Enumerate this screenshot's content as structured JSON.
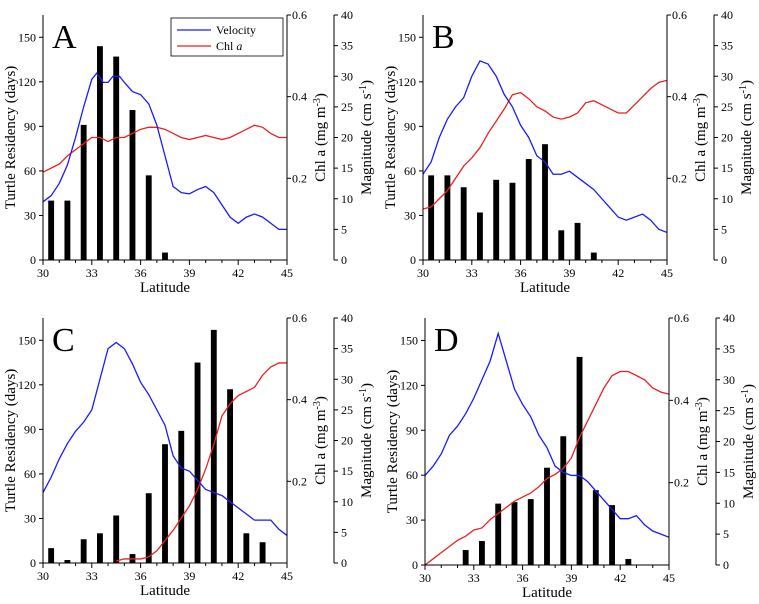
{
  "colors": {
    "velocity": "#1a1aff",
    "chl": "#e8231f",
    "bars": "#000000",
    "axes": "#000000"
  },
  "legend": {
    "velocity_label": "Velocity",
    "chl_label_prefix": "Chl ",
    "chl_label_italic": "a"
  },
  "labels": {
    "xlabel": "Latitude",
    "ylabel_left": "Turtle Residency (days)",
    "ylabel_chl_prefix": "Chl a (mg m",
    "ylabel_chl_sup": "-3",
    "ylabel_chl_suffix": ")",
    "ylabel_mag_prefix": "Magnitude (cm s",
    "ylabel_mag_sup": "-1",
    "ylabel_mag_suffix": ")"
  },
  "chart_data": [
    {
      "panel": "A",
      "type": "bar",
      "xlim": [
        30,
        45
      ],
      "xticks": [
        30,
        33,
        36,
        39,
        42,
        45
      ],
      "ylim_left": [
        0,
        165
      ],
      "yticks_left": [
        0,
        30,
        60,
        90,
        120,
        150
      ],
      "ylim_chl": [
        0,
        0.6
      ],
      "yticks_chl": [
        0.2,
        0.4,
        0.6
      ],
      "ylim_mag": [
        0,
        40
      ],
      "yticks_mag": [
        0,
        5,
        10,
        15,
        20,
        25,
        30,
        35,
        40
      ],
      "legend": "top-right",
      "bars": {
        "x": [
          30.5,
          31.5,
          32.5,
          33.5,
          34.5,
          35.5,
          36.5,
          37.5
        ],
        "values": [
          40,
          40,
          91,
          144,
          137,
          101,
          57,
          5
        ]
      },
      "velocity": {
        "x": [
          30,
          30.5,
          31,
          31.5,
          32,
          32.5,
          33,
          33.3,
          33.7,
          34,
          34.3,
          34.7,
          35,
          35.5,
          36,
          36.5,
          37,
          37.5,
          38,
          38.5,
          39,
          39.5,
          40,
          40.5,
          41,
          41.5,
          42,
          42.5,
          43,
          43.5,
          44,
          44.5,
          45
        ],
        "values": [
          9.5,
          10.5,
          12.5,
          15.5,
          20,
          25,
          29.5,
          30.5,
          29,
          29,
          30,
          30,
          29,
          27.5,
          27,
          25.5,
          22,
          17,
          12,
          11,
          10.8,
          11.5,
          12,
          11,
          9,
          7,
          6,
          7,
          7.5,
          7,
          6,
          5,
          5
        ]
      },
      "chl": {
        "x": [
          30,
          30.5,
          31,
          31.5,
          32,
          32.5,
          33,
          33.5,
          34,
          34.5,
          35,
          35.5,
          36,
          36.5,
          37,
          37.5,
          38,
          38.5,
          39,
          39.5,
          40,
          40.5,
          41,
          41.5,
          42,
          42.5,
          43,
          43.5,
          44,
          44.5,
          45
        ],
        "values": [
          0.215,
          0.225,
          0.235,
          0.255,
          0.27,
          0.285,
          0.3,
          0.3,
          0.29,
          0.3,
          0.3,
          0.31,
          0.32,
          0.325,
          0.325,
          0.32,
          0.31,
          0.3,
          0.295,
          0.3,
          0.305,
          0.3,
          0.295,
          0.3,
          0.31,
          0.32,
          0.33,
          0.325,
          0.31,
          0.3,
          0.3
        ]
      }
    },
    {
      "panel": "B",
      "type": "bar",
      "xlim": [
        30,
        45
      ],
      "xticks": [
        30,
        33,
        36,
        39,
        42,
        45
      ],
      "ylim_left": [
        0,
        165
      ],
      "yticks_left": [
        0,
        30,
        60,
        90,
        120,
        150
      ],
      "ylim_chl": [
        0,
        0.6
      ],
      "yticks_chl": [
        0.2,
        0.4,
        0.6
      ],
      "ylim_mag": [
        0,
        40
      ],
      "yticks_mag": [
        0,
        5,
        10,
        15,
        20,
        25,
        30,
        35,
        40
      ],
      "bars": {
        "x": [
          30.5,
          31.5,
          32.5,
          33.5,
          34.5,
          35.5,
          36.5,
          37.5,
          38.5,
          39.5,
          40.5
        ],
        "values": [
          57,
          57,
          49,
          32,
          54,
          52,
          68,
          78,
          20,
          25,
          5
        ]
      },
      "velocity": {
        "x": [
          30,
          30.5,
          31,
          31.5,
          32,
          32.5,
          33,
          33.5,
          34,
          34.5,
          35,
          35.5,
          36,
          36.5,
          37,
          37.5,
          38,
          38.5,
          39,
          39.5,
          40,
          40.5,
          41,
          41.5,
          42,
          42.5,
          43,
          43.5,
          44,
          44.5,
          45
        ],
        "values": [
          14,
          16,
          20,
          23,
          25,
          26.5,
          30,
          32.5,
          32,
          30,
          27,
          25,
          22,
          20,
          17,
          16,
          14,
          14,
          14.5,
          13.5,
          12.5,
          11.5,
          10,
          8.5,
          7,
          6.5,
          7,
          7.5,
          6.5,
          5,
          4.5
        ]
      },
      "chl": {
        "x": [
          30,
          30.5,
          31,
          31.5,
          32,
          32.5,
          33,
          33.5,
          34,
          34.5,
          35,
          35.5,
          36,
          36.5,
          37,
          37.5,
          38,
          38.5,
          39,
          39.5,
          40,
          40.5,
          41,
          41.5,
          42,
          42.5,
          43,
          43.5,
          44,
          44.5,
          45
        ],
        "values": [
          0.125,
          0.13,
          0.15,
          0.17,
          0.2,
          0.23,
          0.25,
          0.275,
          0.31,
          0.34,
          0.37,
          0.405,
          0.41,
          0.395,
          0.375,
          0.365,
          0.35,
          0.345,
          0.35,
          0.36,
          0.385,
          0.39,
          0.38,
          0.37,
          0.36,
          0.36,
          0.38,
          0.4,
          0.42,
          0.435,
          0.44
        ]
      }
    },
    {
      "panel": "C",
      "type": "bar",
      "xlim": [
        30,
        45
      ],
      "xticks": [
        30,
        33,
        36,
        39,
        42,
        45
      ],
      "ylim_left": [
        0,
        165
      ],
      "yticks_left": [
        0,
        30,
        60,
        90,
        120,
        150
      ],
      "ylim_chl": [
        0,
        0.6
      ],
      "yticks_chl": [
        0.2,
        0.4,
        0.6
      ],
      "ylim_mag": [
        0,
        40
      ],
      "yticks_mag": [
        0,
        5,
        10,
        15,
        20,
        25,
        30,
        35,
        40
      ],
      "bars": {
        "x": [
          30.5,
          31.5,
          32.5,
          33.5,
          34.5,
          35.5,
          36.5,
          37.5,
          38.5,
          39.5,
          40.5,
          41.5,
          42.5,
          43.5
        ],
        "values": [
          10,
          2,
          16,
          20,
          32,
          6,
          47,
          80,
          89,
          135,
          157,
          117,
          20,
          14
        ]
      },
      "velocity": {
        "x": [
          30,
          30.5,
          31,
          31.5,
          32,
          32.5,
          33,
          33.5,
          34,
          34.5,
          35,
          35.5,
          36,
          36.5,
          37,
          37.5,
          38,
          38.5,
          39,
          39.5,
          40,
          40.5,
          41,
          41.5,
          42,
          42.5,
          43,
          43.5,
          44,
          44.5,
          45
        ],
        "values": [
          11.5,
          14,
          17,
          19.5,
          21.5,
          23,
          25,
          30,
          35,
          36,
          35,
          32.5,
          29.5,
          27.5,
          25,
          22.5,
          17.5,
          15.5,
          15,
          13.5,
          12,
          11.5,
          11,
          10,
          9,
          8,
          7,
          7,
          7,
          5.5,
          4.5
        ]
      },
      "chl": {
        "x": [
          34.5,
          35,
          35.5,
          36,
          36.5,
          37,
          37.5,
          38,
          38.5,
          39,
          39.5,
          40,
          40.5,
          41,
          41.5,
          42,
          42.5,
          43,
          43.5,
          44,
          44.5,
          45
        ],
        "values": [
          0.005,
          0.01,
          0.01,
          0.01,
          0.015,
          0.03,
          0.055,
          0.08,
          0.11,
          0.14,
          0.18,
          0.23,
          0.29,
          0.36,
          0.39,
          0.41,
          0.42,
          0.43,
          0.46,
          0.48,
          0.49,
          0.49
        ]
      }
    },
    {
      "panel": "D",
      "type": "bar",
      "xlim": [
        30,
        45
      ],
      "xticks": [
        30,
        33,
        36,
        39,
        42,
        45
      ],
      "ylim_left": [
        0,
        165
      ],
      "yticks_left": [
        0,
        30,
        60,
        90,
        120,
        150
      ],
      "ylim_chl": [
        0,
        0.6
      ],
      "yticks_chl": [
        0.2,
        0.4,
        0.6
      ],
      "ylim_mag": [
        0,
        40
      ],
      "yticks_mag": [
        0,
        5,
        10,
        15,
        20,
        25,
        30,
        35,
        40
      ],
      "bars": {
        "x": [
          32.5,
          33.5,
          34.5,
          35.5,
          36.5,
          37.5,
          38.5,
          39.5,
          40.5,
          41.5,
          42.5
        ],
        "values": [
          10,
          16,
          41,
          42,
          44,
          65,
          86,
          139,
          50,
          40,
          4
        ]
      },
      "velocity": {
        "x": [
          30,
          30.5,
          31,
          31.5,
          32,
          32.5,
          33,
          33.5,
          34,
          34.5,
          35,
          35.5,
          36,
          36.5,
          37,
          37.5,
          38,
          38.5,
          39,
          39.5,
          40,
          40.5,
          41,
          41.5,
          42,
          42.5,
          43,
          43.5,
          44,
          44.5,
          45
        ],
        "values": [
          14.5,
          16,
          18,
          21,
          22.5,
          24.5,
          27,
          30,
          33,
          37.5,
          33,
          28.5,
          26,
          24,
          21,
          19,
          16,
          15,
          14.5,
          14.5,
          13.5,
          12,
          10.5,
          9,
          7.5,
          7.5,
          8,
          6.5,
          5.5,
          5,
          4.5
        ]
      },
      "chl": {
        "x": [
          30,
          30.5,
          31,
          31.5,
          32,
          32.5,
          33,
          33.5,
          34,
          34.5,
          35,
          35.5,
          36,
          36.5,
          37,
          37.5,
          38,
          38.5,
          39,
          39.5,
          40,
          40.5,
          41,
          41.5,
          42,
          42.5,
          43,
          43.5,
          44,
          44.5,
          45
        ],
        "values": [
          0.0,
          0.015,
          0.03,
          0.045,
          0.06,
          0.07,
          0.085,
          0.09,
          0.11,
          0.125,
          0.14,
          0.155,
          0.165,
          0.175,
          0.19,
          0.21,
          0.22,
          0.235,
          0.26,
          0.31,
          0.35,
          0.39,
          0.43,
          0.46,
          0.47,
          0.47,
          0.46,
          0.45,
          0.43,
          0.42,
          0.415
        ]
      }
    }
  ]
}
